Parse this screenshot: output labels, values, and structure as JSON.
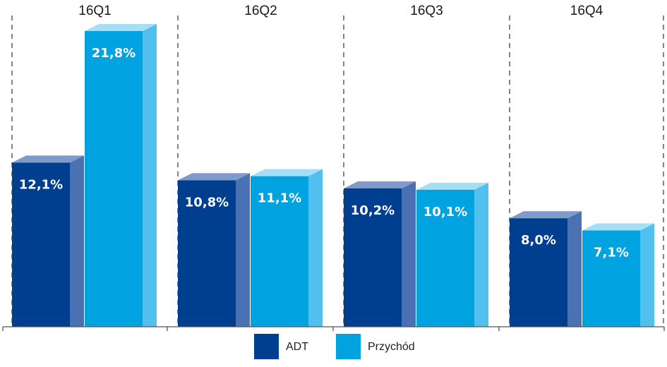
{
  "chart_data": {
    "type": "bar",
    "style": "3d",
    "categories": [
      "16Q1",
      "16Q2",
      "16Q3",
      "16Q4"
    ],
    "series": [
      {
        "name": "ADT",
        "values": [
          12.1,
          10.8,
          10.2,
          8.0
        ],
        "labels": [
          "12,1%",
          "10,8%",
          "10,2%",
          "8,0%"
        ],
        "color": "#003e8f",
        "side_color": "#4a72b2",
        "top_color": "#7f9bcc"
      },
      {
        "name": "Przychód",
        "values": [
          21.8,
          11.1,
          10.1,
          7.1
        ],
        "labels": [
          "21,8%",
          "11,1%",
          "10,1%",
          "7,1%"
        ],
        "color": "#00a3e0",
        "side_color": "#52c0ee",
        "top_color": "#a6def6"
      }
    ],
    "ylim": [
      0,
      21.8
    ],
    "grid": false,
    "category_separators": "dashed",
    "legend": "bottom-center"
  }
}
